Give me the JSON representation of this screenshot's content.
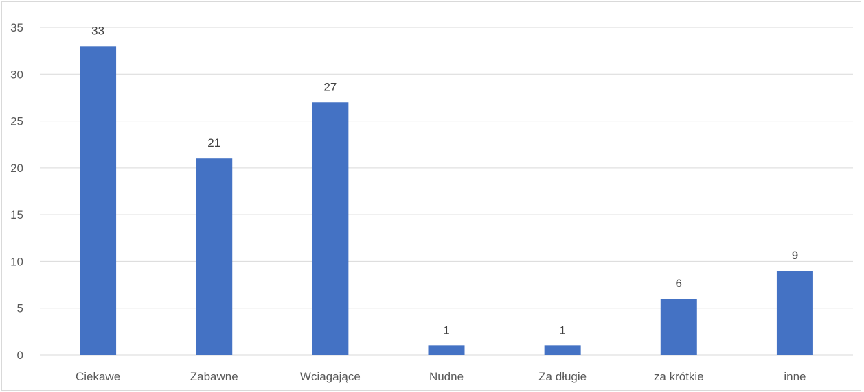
{
  "chart_data": {
    "type": "bar",
    "categories": [
      "Ciekawe",
      "Zabawne",
      "Wciagające",
      "Nudne",
      "Za długie",
      "za krótkie",
      "inne"
    ],
    "values": [
      33,
      21,
      27,
      1,
      1,
      6,
      9
    ],
    "data_labels": [
      "33",
      "21",
      "27",
      "1",
      "1",
      "6",
      "9"
    ],
    "y_ticks": [
      "0",
      "5",
      "10",
      "15",
      "20",
      "25",
      "30",
      "35"
    ],
    "ylim": [
      0,
      35
    ],
    "grid": true,
    "legend": "none",
    "title": "",
    "xlabel": "",
    "ylabel": "",
    "colors": {
      "bar": "#4472C4",
      "grid": "#d9d9d9",
      "tick_text": "#595959",
      "label_text": "#404040"
    }
  }
}
